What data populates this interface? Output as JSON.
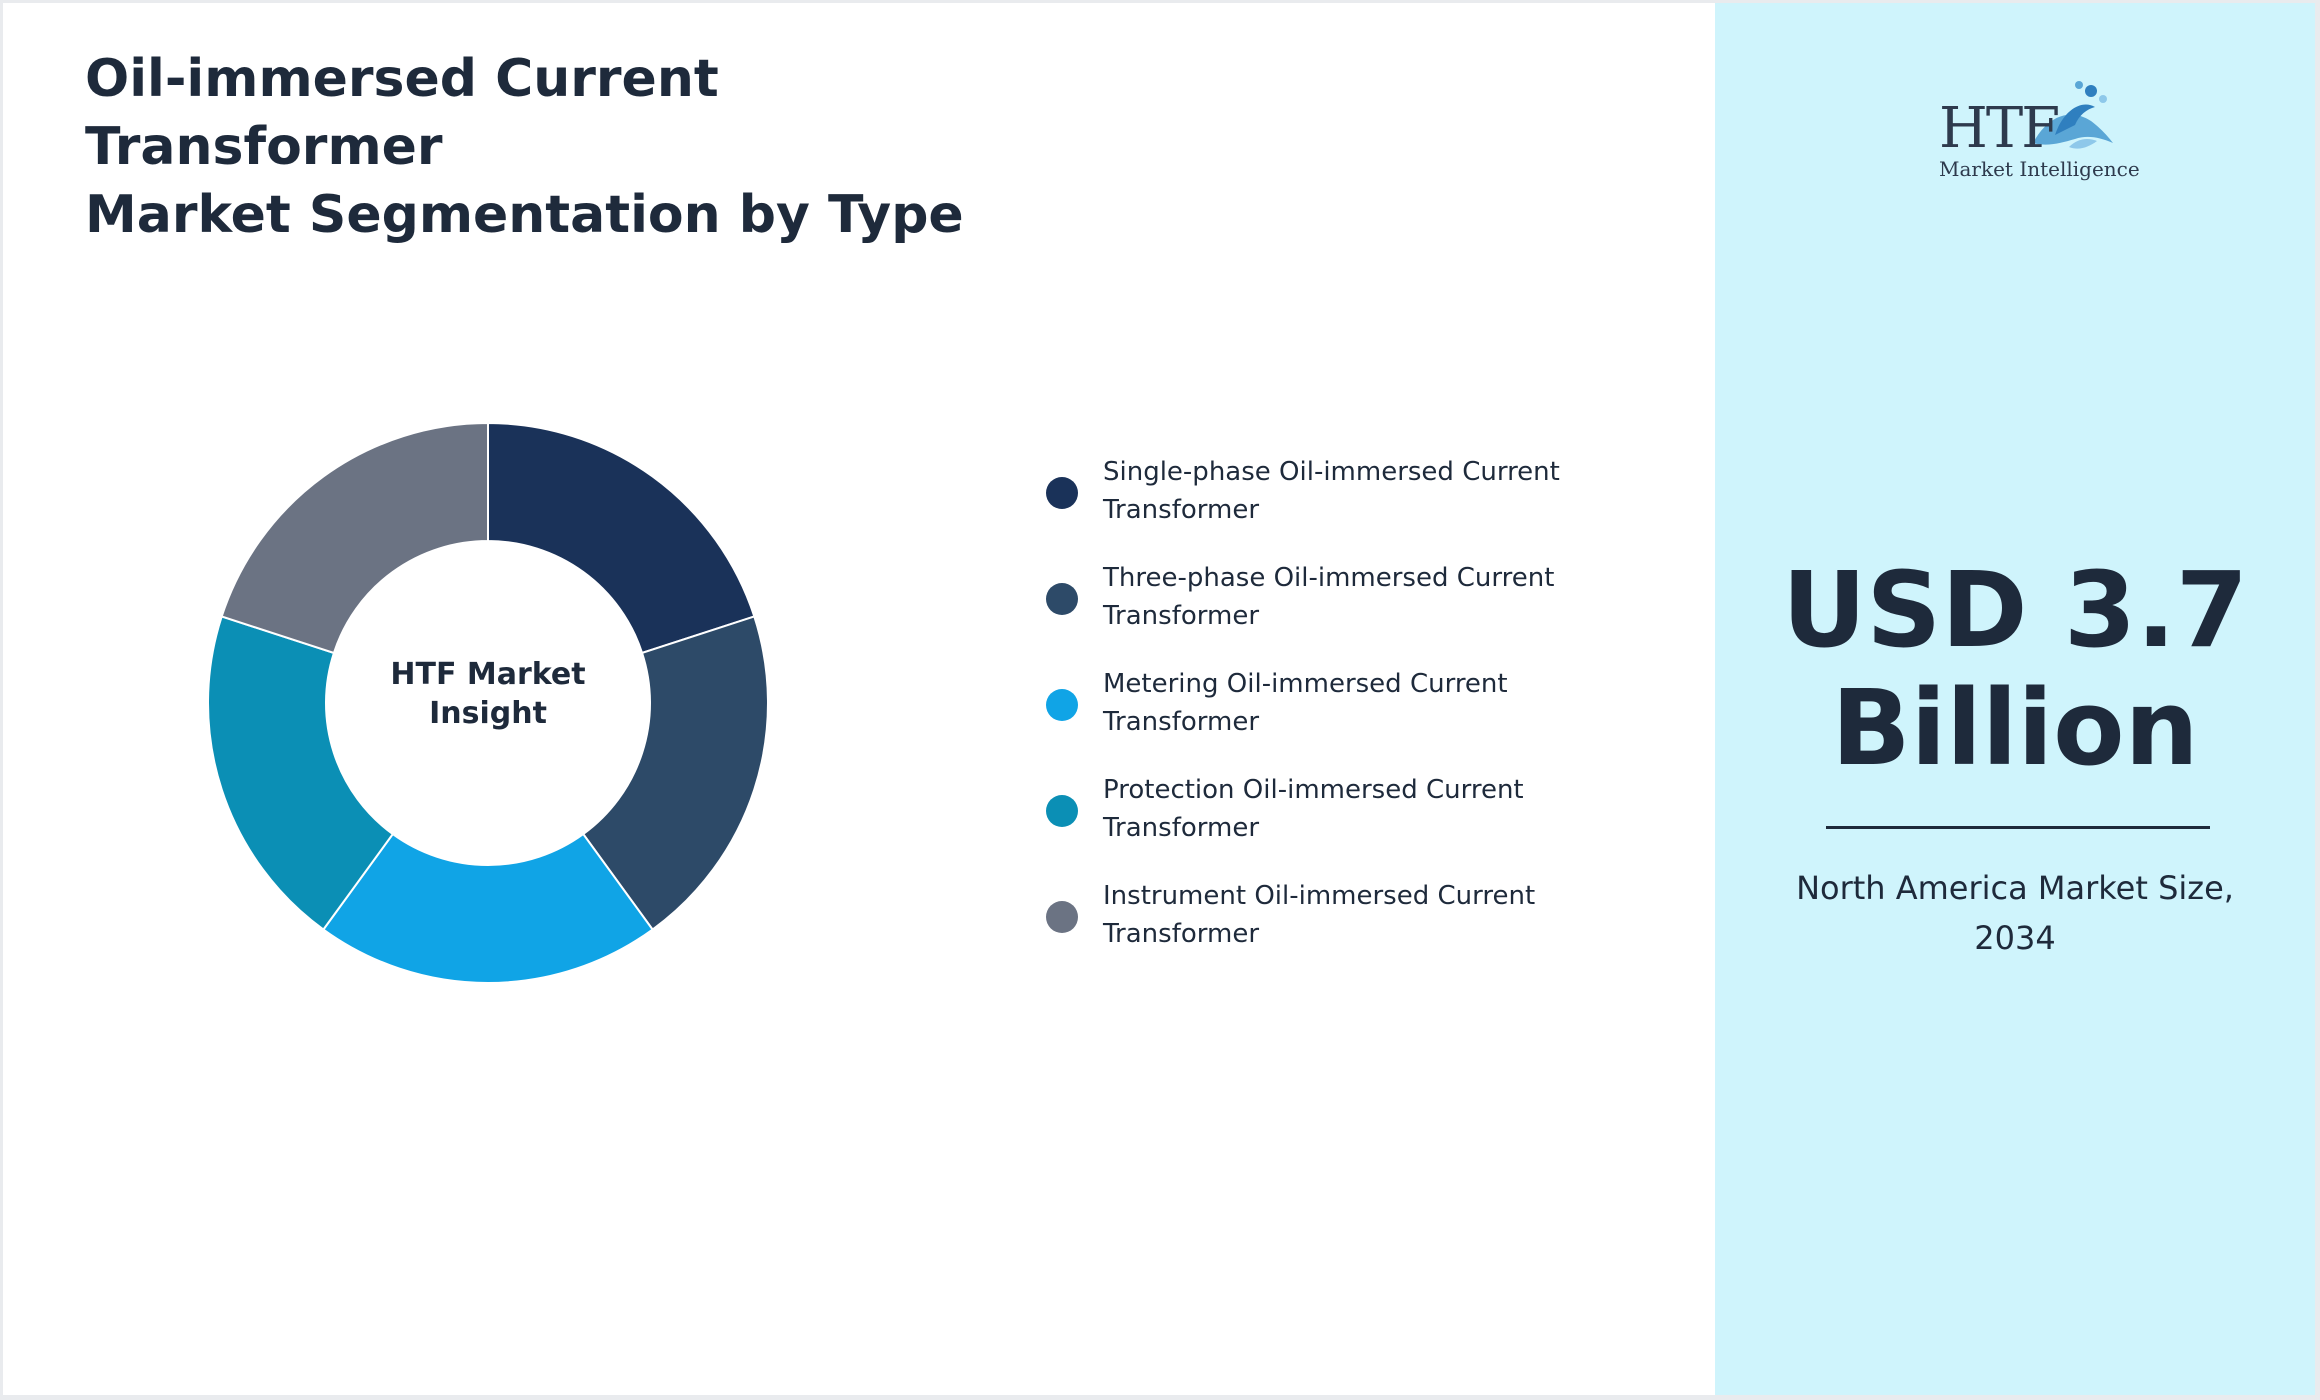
{
  "title": {
    "line1": "Oil-immersed Current Transformer",
    "line2": "Market Segmentation by Type"
  },
  "chart_data": {
    "type": "pie",
    "title": "Oil-immersed Current Transformer Market Segmentation by Type",
    "center_label_line1": "HTF Market",
    "center_label_line2": "Insight",
    "categories": [
      "Single-phase Oil-immersed Current Transformer",
      "Three-phase Oil-immersed Current Transformer",
      "Metering Oil-immersed Current Transformer",
      "Protection Oil-immersed Current Transformer",
      "Instrument Oil-immersed Current Transformer"
    ],
    "values": [
      20,
      20,
      20,
      20,
      20
    ],
    "colors": [
      "#1a3259",
      "#2d4a68",
      "#10a4e6",
      "#0b8fb5",
      "#6b7383"
    ],
    "legend_position": "right"
  },
  "legend": [
    {
      "line1": "Single-phase Oil-immersed Current",
      "line2": "Transformer",
      "color": "#1a3259"
    },
    {
      "line1": "Three-phase Oil-immersed Current",
      "line2": "Transformer",
      "color": "#2d4a68"
    },
    {
      "line1": "Metering Oil-immersed Current",
      "line2": "Transformer",
      "color": "#10a4e6"
    },
    {
      "line1": "Protection Oil-immersed Current",
      "line2": "Transformer",
      "color": "#0b8fb5"
    },
    {
      "line1": "Instrument Oil-immersed Current",
      "line2": "Transformer",
      "color": "#6b7383"
    }
  ],
  "logo": {
    "brand": "HTF",
    "subtitle": "Market Intelligence",
    "icon": "dolphin-wave-icon"
  },
  "highlight": {
    "value_line1": "USD 3.7",
    "value_line2": "Billion",
    "caption_line1": "North America Market Size,",
    "caption_line2": "2034",
    "panel_color": "#cff4fc"
  }
}
